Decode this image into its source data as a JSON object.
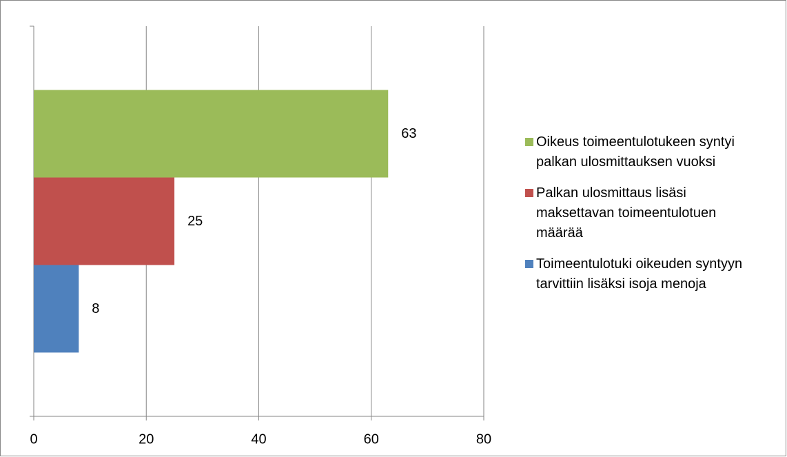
{
  "chart_data": {
    "type": "bar",
    "orientation": "horizontal",
    "categories": [
      null
    ],
    "series": [
      {
        "name": "Oikeus toimeentulotukeen syntyi palkan ulosmittauksen vuoksi",
        "color": "#9bbb59",
        "values": [
          63
        ]
      },
      {
        "name": "Palkan ulosmittaus lisäsi maksettavan toimeentulotuen määrää",
        "color": "#c0504d",
        "values": [
          25
        ]
      },
      {
        "name": "Toimeentulotuki oikeuden syntyyn tarvittiin lisäksi isoja menoja",
        "color": "#4f81bd",
        "values": [
          8
        ]
      }
    ],
    "xlim": [
      0,
      80
    ],
    "xticks": [
      0,
      20,
      40,
      60,
      80
    ],
    "grid": true,
    "legend": "right"
  }
}
